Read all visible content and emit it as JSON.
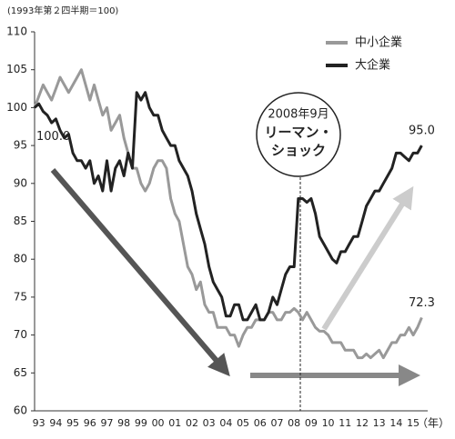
{
  "chart_data": {
    "type": "line",
    "note": "(1993年第２四半期＝100)",
    "x_unit": "（年）",
    "annotation": [
      "2008年9月",
      "リーマン・",
      "ショック"
    ],
    "categories": [
      null,
      "93",
      null,
      null,
      null,
      "94",
      null,
      null,
      null,
      "95",
      null,
      null,
      null,
      "96",
      null,
      null,
      null,
      "97",
      null,
      null,
      null,
      "98",
      null,
      null,
      null,
      "99",
      null,
      null,
      null,
      "00",
      null,
      null,
      null,
      "01",
      null,
      null,
      null,
      "02",
      null,
      null,
      null,
      "03",
      null,
      null,
      null,
      "04",
      null,
      null,
      null,
      "05",
      null,
      null,
      null,
      "06",
      null,
      null,
      null,
      "07",
      null,
      null,
      null,
      "08",
      null,
      null,
      null,
      "09",
      null,
      null,
      null,
      "10",
      null,
      null,
      null,
      "11",
      null,
      null,
      null,
      "12",
      null,
      null,
      null,
      "13",
      null,
      null,
      null,
      "14",
      null,
      null,
      null,
      "15",
      null,
      null
    ],
    "series": [
      {
        "name": "中小企業",
        "color": "#999999",
        "values": [
          100,
          101.5,
          103,
          102,
          101,
          102.5,
          104,
          103,
          102,
          103,
          104,
          105,
          103,
          101,
          103,
          101,
          99,
          100,
          97,
          98,
          99,
          96,
          94,
          92,
          92,
          90,
          89,
          90,
          92,
          93,
          93,
          92,
          88,
          86,
          85,
          82,
          79,
          78,
          76,
          77,
          74,
          73,
          73,
          71,
          71,
          71,
          70,
          70,
          68.5,
          70,
          71,
          71,
          72,
          72,
          72,
          73,
          73,
          72,
          72,
          73,
          73,
          73.5,
          73,
          72,
          73,
          72,
          71,
          70.5,
          70.5,
          70,
          69,
          69,
          69,
          68,
          68,
          68,
          67,
          67,
          67.5,
          67,
          67.5,
          68,
          67,
          68,
          69,
          69,
          70,
          70,
          71,
          70,
          71,
          72.3
        ],
        "value_labels": [
          null,
          null,
          null,
          null,
          null,
          null,
          null,
          null,
          null,
          null,
          null,
          null,
          null,
          null,
          null,
          null,
          null,
          null,
          null,
          null,
          null,
          null,
          null,
          null,
          null,
          null,
          null,
          null,
          null,
          null,
          null,
          null,
          null,
          null,
          null,
          null,
          null,
          null,
          null,
          null,
          null,
          null,
          null,
          null,
          null,
          null,
          null,
          null,
          null,
          null,
          null,
          null,
          null,
          null,
          null,
          null,
          null,
          null,
          null,
          null,
          null,
          null,
          null,
          null,
          null,
          null,
          null,
          null,
          null,
          null,
          null,
          null,
          null,
          null,
          null,
          null,
          null,
          null,
          null,
          null,
          null,
          null,
          null,
          null,
          null,
          null,
          null,
          null,
          null,
          null,
          null,
          "72.3"
        ]
      },
      {
        "name": "大企業",
        "color": "#222222",
        "values": [
          100,
          100.5,
          99.5,
          99,
          98,
          98.5,
          97,
          96,
          96.5,
          94,
          93,
          93,
          92,
          93,
          90,
          91,
          89,
          93,
          89,
          92,
          93,
          91,
          94,
          92,
          102,
          101,
          102,
          100,
          99,
          99,
          97,
          96,
          95,
          95,
          93,
          92,
          91,
          89,
          86,
          84,
          82,
          79,
          77,
          76,
          75,
          72.5,
          72.5,
          74,
          74,
          72,
          72,
          73,
          74,
          72,
          72,
          73,
          75,
          74,
          76,
          78,
          79,
          79,
          88,
          88,
          87.5,
          88,
          86,
          83,
          82,
          81,
          80,
          79.5,
          81,
          81,
          82,
          83,
          83,
          85,
          87,
          88,
          89,
          89,
          90,
          91,
          92,
          94,
          94,
          93.5,
          93,
          94,
          94,
          95
        ],
        "value_labels": [
          "100.0",
          null,
          null,
          null,
          null,
          null,
          null,
          null,
          null,
          null,
          null,
          null,
          null,
          null,
          null,
          null,
          null,
          null,
          null,
          null,
          null,
          null,
          null,
          null,
          null,
          null,
          null,
          null,
          null,
          null,
          null,
          null,
          null,
          null,
          null,
          null,
          null,
          null,
          null,
          null,
          null,
          null,
          null,
          null,
          null,
          null,
          null,
          null,
          null,
          null,
          null,
          null,
          null,
          null,
          null,
          null,
          null,
          null,
          null,
          null,
          null,
          null,
          null,
          null,
          null,
          null,
          null,
          null,
          null,
          null,
          null,
          null,
          null,
          null,
          null,
          null,
          null,
          null,
          null,
          null,
          null,
          null,
          null,
          null,
          null,
          null,
          null,
          null,
          null,
          null,
          null,
          "95.0"
        ]
      }
    ],
    "ylim": [
      60,
      110
    ],
    "yticks": [
      60,
      65,
      70,
      75,
      80,
      85,
      90,
      95,
      100,
      105,
      110
    ],
    "grid": false
  }
}
